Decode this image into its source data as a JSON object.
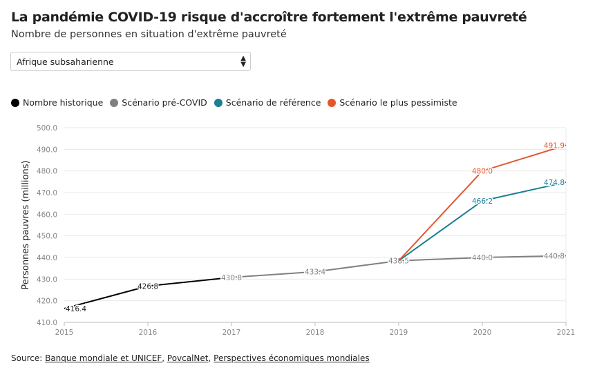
{
  "title": "La pandémie COVID-19 risque d'accroître fortement l'extrême pauvreté",
  "subtitle": "Nombre de personnes en situation d'extrême pauvreté",
  "region_select": {
    "value": "Afrique subsaharienne"
  },
  "source": {
    "label": "Source:",
    "links": [
      "Banque mondiale et UNICEF",
      "PovcalNet",
      "Perspectives économiques mondiales"
    ]
  },
  "chart_data": {
    "type": "line",
    "xlabel": "",
    "ylabel": "Personnes pauvres (millions)",
    "xlim": [
      2015,
      2021
    ],
    "ylim": [
      410,
      500
    ],
    "yticks": [
      "410.0",
      "420.0",
      "430.0",
      "440.0",
      "450.0",
      "460.0",
      "470.0",
      "480.0",
      "490.0",
      "500.0"
    ],
    "xticks": [
      "2015",
      "2016",
      "2017",
      "2018",
      "2019",
      "2020",
      "2021"
    ],
    "grid": true,
    "legend_position": "top-left",
    "series": [
      {
        "name": "Nombre historique",
        "color": "#000000",
        "x": [
          2015,
          2016,
          2017
        ],
        "values": [
          416.4,
          426.8,
          430.8
        ],
        "labels": [
          "416.4",
          "426.8",
          ""
        ]
      },
      {
        "name": "Scénario pré-COVID",
        "color": "#808080",
        "x": [
          2017,
          2018,
          2019,
          2020,
          2021
        ],
        "values": [
          430.8,
          433.4,
          438.5,
          440.0,
          440.8
        ],
        "labels": [
          "430.8",
          "433.4",
          "438.5",
          "440.0",
          "440.8"
        ]
      },
      {
        "name": "Scénario de référence",
        "color": "#1a7f95",
        "x": [
          2019,
          2020,
          2021
        ],
        "values": [
          438.5,
          466.2,
          474.8
        ],
        "labels": [
          "",
          "466.2",
          "474.8"
        ]
      },
      {
        "name": "Scénario le plus pessimiste",
        "color": "#e4572e",
        "x": [
          2019,
          2020,
          2021
        ],
        "values": [
          438.5,
          480.0,
          491.9
        ],
        "labels": [
          "",
          "480.0",
          "491.9"
        ]
      }
    ]
  }
}
